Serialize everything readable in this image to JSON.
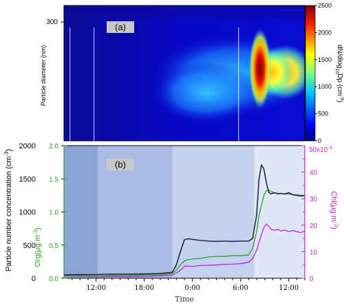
{
  "figure": {
    "colors": {
      "particle": "#1f2940",
      "org": "#2ca02c",
      "chl": "#c026c6",
      "panel_label_bg": "#c8c8c8",
      "shade_dark": "#8da4d6",
      "shade_mid": "#a9bbe3",
      "shade_light": "#c4d1ee",
      "shade_pale": "#dfe6f6"
    }
  },
  "chart_data": [
    {
      "type": "heatmap",
      "panel_label": "(a)",
      "ylabel": "Particle diameter (nm)",
      "y_ticks": [
        "300"
      ],
      "colorbar": {
        "label_html": "dN/dlog10Dp (cm⁻³)",
        "label_parts": [
          "dN/dlog",
          "10",
          "Dp (cm",
          "-3",
          ")"
        ],
        "ticks": [
          0,
          500,
          1000,
          1500,
          2000,
          2500
        ],
        "range": [
          0,
          2500
        ]
      },
      "vertical_markers_time": [
        "05:45",
        "08:45",
        "11:45"
      ]
    },
    {
      "type": "line",
      "panel_label": "(b)",
      "xlabel": "Time",
      "x_ticks": [
        "12:00",
        "18:00",
        "0:00",
        "6:00",
        "12:00"
      ],
      "x_tick_hours": [
        12,
        18,
        24,
        30,
        36
      ],
      "xlim_hours": [
        8,
        38
      ],
      "ylabel_left": "Particle number concentration (cm",
      "ylabel_left_sup": "-3",
      "ylim_left": [
        0,
        2000
      ],
      "y_ticks_left": [
        "0",
        "500",
        "1000",
        "1500",
        "2000"
      ],
      "ylabel_org": "Org(μg m",
      "ylabel_org_sup": "-3",
      "ylim_org": [
        0,
        2.0
      ],
      "y_ticks_org": [
        "0.0",
        "0.5",
        "1.0",
        "1.5",
        "2.0"
      ],
      "ylabel_right": "Chl(μg m",
      "ylabel_right_sup": "-3",
      "right_scale_label": "50x10",
      "right_scale_exp": "-3",
      "ylim_right": [
        0,
        50
      ],
      "y_ticks_right": [
        "0",
        "10",
        "20",
        "30",
        "40"
      ],
      "shaded_periods_hours": [
        {
          "start": 8,
          "end": 12.2,
          "tone": "dark"
        },
        {
          "start": 12.2,
          "end": 21.5,
          "tone": "mid"
        },
        {
          "start": 21.5,
          "end": 31.7,
          "tone": "light"
        },
        {
          "start": 31.7,
          "end": 38,
          "tone": "pale"
        }
      ],
      "series": [
        {
          "axis": "left",
          "x": [
            8,
            10,
            12,
            14,
            16,
            18,
            20,
            21.5,
            22,
            22.5,
            23,
            23.5,
            24,
            25,
            26,
            27,
            28,
            29,
            30,
            31,
            31.5,
            32,
            32.3,
            32.6,
            32.9,
            33.2,
            33.5,
            33.8,
            34.2,
            34.7,
            35,
            35.5,
            36,
            36.5,
            37,
            37.5,
            38
          ],
          "values": [
            50,
            55,
            55,
            60,
            60,
            65,
            70,
            90,
            200,
            400,
            580,
            595,
            585,
            570,
            560,
            555,
            560,
            555,
            560,
            560,
            600,
            950,
            1500,
            1710,
            1650,
            1450,
            1300,
            1270,
            1290,
            1270,
            1280,
            1270,
            1290,
            1260,
            1250,
            1240,
            1245
          ]
        },
        {
          "axis": "org",
          "x": [
            8,
            10,
            12,
            14,
            16,
            18,
            20,
            21.5,
            22,
            22.5,
            23,
            23.5,
            24,
            25,
            26,
            27,
            28,
            29,
            30,
            31,
            31.5,
            32,
            32.3,
            32.6,
            32.9,
            33.2,
            33.5,
            33.8,
            34.2,
            34.7,
            35,
            35.5,
            36,
            36.5,
            37,
            37.5,
            38
          ],
          "values": [
            0.04,
            0.04,
            0.03,
            0.04,
            0.04,
            0.05,
            0.05,
            0.07,
            0.12,
            0.2,
            0.26,
            0.28,
            0.29,
            0.3,
            0.32,
            0.33,
            0.33,
            0.34,
            0.34,
            0.35,
            0.45,
            0.7,
            0.95,
            1.1,
            1.25,
            1.32,
            1.33,
            1.31,
            1.29,
            1.28,
            1.28,
            1.27,
            1.27,
            1.26,
            1.26,
            1.25,
            1.25
          ]
        },
        {
          "axis": "right",
          "x": [
            8,
            10,
            12,
            14,
            16,
            18,
            20,
            21.5,
            22,
            22.5,
            23,
            23.5,
            24,
            25,
            26,
            27,
            28,
            29,
            30,
            31,
            31.5,
            32,
            32.3,
            32.6,
            32.9,
            33.2,
            33.5,
            33.8,
            34.2,
            34.7,
            35,
            35.5,
            36,
            36.5,
            37,
            37.5,
            38
          ],
          "values": [
            0.9,
            0.8,
            0.6,
            0.7,
            0.6,
            0.7,
            0.9,
            1.2,
            2.0,
            3.0,
            4.5,
            4.6,
            4.4,
            4.8,
            4.9,
            5.0,
            5.2,
            5.3,
            5.5,
            6.0,
            7.5,
            10.5,
            13.5,
            16.5,
            19.0,
            20.5,
            19.5,
            18.5,
            18.0,
            18.5,
            17.8,
            18.2,
            17.5,
            18.0,
            17.6,
            17.2,
            17.8
          ]
        }
      ]
    }
  ]
}
